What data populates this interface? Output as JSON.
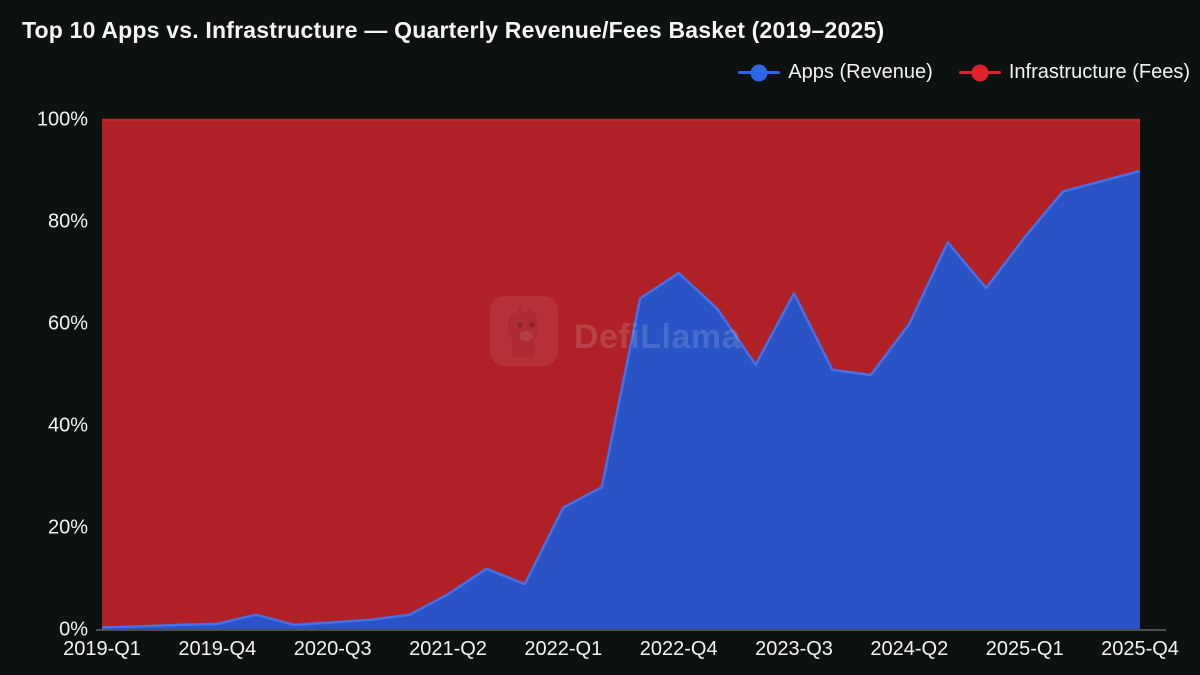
{
  "title": "Top 10 Apps vs. Infrastructure — Quarterly Revenue/Fees Basket (2019–2025)",
  "legend": {
    "items": [
      {
        "label": "Apps (Revenue)",
        "color": "#2e66e8"
      },
      {
        "label": "Infrastructure (Fees)",
        "color": "#e0232b"
      }
    ]
  },
  "watermark": {
    "text": "DefiLlama",
    "icon": "llama-logo-icon"
  },
  "colors": {
    "background": "#0d1211",
    "apps_fill": "#2a53c5",
    "apps_line": "#4571e8",
    "infra_fill": "#b02127",
    "infra_line": "#c4282c",
    "axis_line": "#4a504e",
    "text": "#f2f4f4"
  },
  "chart_data": {
    "type": "area",
    "stacked": true,
    "percent": true,
    "title": "Top 10 Apps vs. Infrastructure — Quarterly Revenue/Fees Basket (2019–2025)",
    "xlabel": "",
    "ylabel": "",
    "ylim": [
      0,
      100
    ],
    "grid": false,
    "legend_position": "top-right",
    "y_ticks": [
      {
        "label": "0%",
        "value": 0
      },
      {
        "label": "20%",
        "value": 20
      },
      {
        "label": "40%",
        "value": 40
      },
      {
        "label": "60%",
        "value": 60
      },
      {
        "label": "80%",
        "value": 80
      },
      {
        "label": "100%",
        "value": 100
      }
    ],
    "x_tick_labels": [
      "2019-Q1",
      "2019-Q4",
      "2020-Q3",
      "2021-Q2",
      "2022-Q1",
      "2022-Q4",
      "2023-Q3",
      "2024-Q2",
      "2025-Q1",
      "2025-Q4"
    ],
    "categories": [
      "2019-Q1",
      "2019-Q2",
      "2019-Q3",
      "2019-Q4",
      "2020-Q1",
      "2020-Q2",
      "2020-Q3",
      "2020-Q4",
      "2021-Q1",
      "2021-Q2",
      "2021-Q3",
      "2021-Q4",
      "2022-Q1",
      "2022-Q2",
      "2022-Q3",
      "2022-Q4",
      "2023-Q1",
      "2023-Q2",
      "2023-Q3",
      "2023-Q4",
      "2024-Q1",
      "2024-Q2",
      "2024-Q3",
      "2024-Q4",
      "2025-Q1",
      "2025-Q2",
      "2025-Q3",
      "2025-Q4"
    ],
    "series": [
      {
        "name": "Apps (Revenue)",
        "fill_color": "#2a53c5",
        "line_color": "#4571e8",
        "values": [
          0.5,
          0.7,
          1,
          1.2,
          3,
          1,
          1.5,
          2,
          3,
          7,
          12,
          9,
          24,
          28,
          65,
          70,
          63,
          52,
          66,
          51,
          50,
          60,
          76,
          67,
          77,
          86,
          88,
          90
        ]
      },
      {
        "name": "Infrastructure (Fees)",
        "fill_color": "#b02127",
        "line_color": "#c4282c",
        "values": [
          99.5,
          99.3,
          99,
          98.8,
          97,
          99,
          98.5,
          98,
          97,
          93,
          88,
          91,
          76,
          72,
          35,
          30,
          37,
          48,
          34,
          49,
          50,
          40,
          24,
          33,
          23,
          14,
          12,
          10
        ]
      }
    ]
  }
}
